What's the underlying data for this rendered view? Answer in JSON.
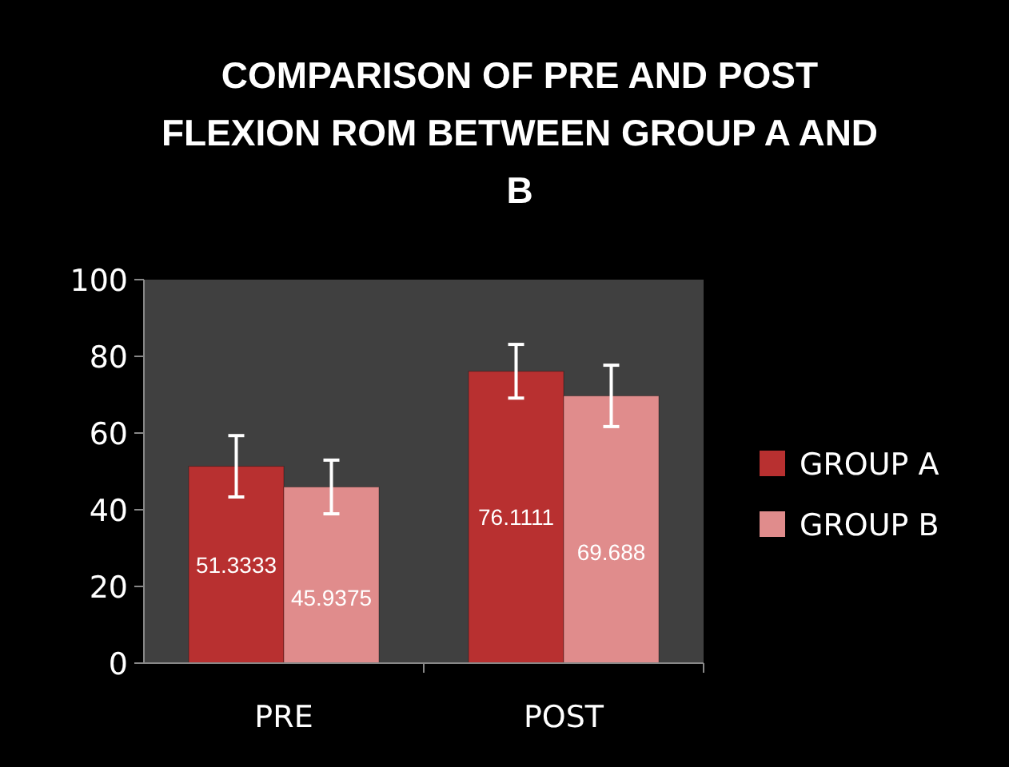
{
  "chart_data": {
    "type": "bar",
    "title": "COMPARISON OF PRE AND POST FLEXION ROM BETWEEN GROUP A AND B",
    "categories": [
      "PRE",
      "POST"
    ],
    "series": [
      {
        "name": "GROUP A",
        "color": "#b83030",
        "values": [
          51.3333,
          76.1111
        ],
        "errors": [
          8,
          7
        ]
      },
      {
        "name": "GROUP B",
        "color": "#e08c8c",
        "values": [
          45.9375,
          69.688
        ],
        "errors": [
          7,
          8
        ]
      }
    ],
    "ylim": [
      0,
      100
    ],
    "yticks": [
      0,
      20,
      40,
      60,
      80,
      100
    ],
    "grid": false,
    "legend": "right",
    "data_labels": true
  }
}
